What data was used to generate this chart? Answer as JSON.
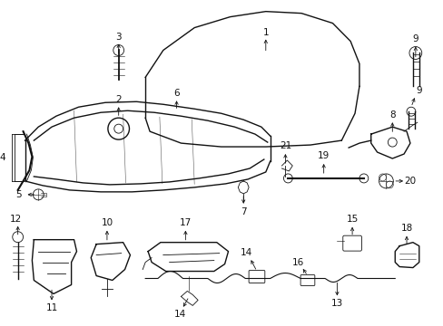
{
  "bg_color": "#ffffff",
  "line_color": "#111111",
  "text_color": "#000000",
  "fig_width": 4.89,
  "fig_height": 3.6,
  "dpi": 100
}
